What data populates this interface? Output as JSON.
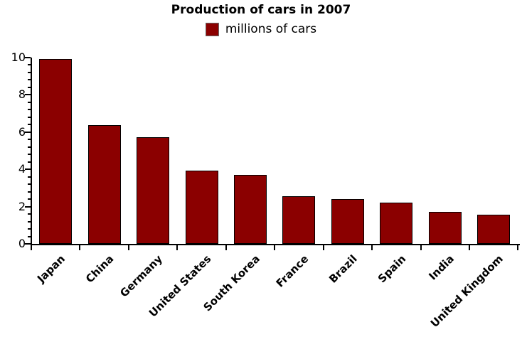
{
  "title": "Production of cars in 2007",
  "legend": {
    "label": "millions of cars",
    "swatch_color": "#8B0000"
  },
  "chart_data": {
    "type": "bar",
    "title": "Production of cars in 2007",
    "series_label": "millions of cars",
    "categories": [
      "Japan",
      "China",
      "Germany",
      "United States",
      "South Korea",
      "France",
      "Brazil",
      "Spain",
      "India",
      "United Kingdom"
    ],
    "values": [
      9.94,
      6.38,
      5.71,
      3.92,
      3.72,
      2.55,
      2.39,
      2.2,
      1.71,
      1.55
    ],
    "xlabel": "",
    "ylabel": "",
    "ylim": [
      0,
      10
    ],
    "ytick_interval": 2,
    "yticks": [
      0,
      2,
      4,
      6,
      8,
      10
    ],
    "minor_tick_interval": 0.4,
    "bar_color": "#8B0000",
    "bar_border_color": "#000000",
    "axis_color": "#000000",
    "grid": false,
    "legend_position": "top",
    "x_label_rotation_deg": 45
  }
}
